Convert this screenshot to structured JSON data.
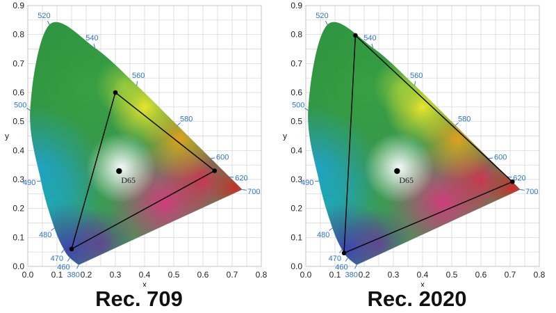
{
  "style": {
    "wavelength_color": "#2e72c8",
    "gamut_color": "#000000",
    "grid_color": "#d2d2d2"
  },
  "chart_data": [
    {
      "type": "scatter",
      "title": "Rec. 709",
      "xlabel": "x",
      "ylabel": "y",
      "xlim": [
        0,
        0.8
      ],
      "ylim": [
        0,
        0.9
      ],
      "grid": true,
      "x_ticks": [
        "0.0",
        "0.1",
        "0.2",
        "0.3",
        "0.4",
        "0.5",
        "0.6",
        "0.7",
        "0.8"
      ],
      "y_ticks": [
        "0.0",
        "0.1",
        "0.2",
        "0.3",
        "0.4",
        "0.5",
        "0.6",
        "0.7",
        "0.8",
        "0.9"
      ],
      "spectral_locus": [
        {
          "nm": "380",
          "x": 0.1741,
          "y": 0.005
        },
        {
          "nm": "460",
          "x": 0.144,
          "y": 0.0297
        },
        {
          "nm": "470",
          "x": 0.1241,
          "y": 0.0578
        },
        {
          "nm": "480",
          "x": 0.0913,
          "y": 0.1327
        },
        {
          "nm": "490",
          "x": 0.0454,
          "y": 0.295
        },
        {
          "nm": "500",
          "x": 0.0082,
          "y": 0.5384
        },
        {
          "nm": "520",
          "x": 0.0743,
          "y": 0.8338
        },
        {
          "nm": "540",
          "x": 0.2296,
          "y": 0.7543
        },
        {
          "nm": "560",
          "x": 0.3731,
          "y": 0.6245
        },
        {
          "nm": "580",
          "x": 0.5125,
          "y": 0.4866
        },
        {
          "nm": "600",
          "x": 0.627,
          "y": 0.3725
        },
        {
          "nm": "620",
          "x": 0.6915,
          "y": 0.3083
        },
        {
          "nm": "700",
          "x": 0.7347,
          "y": 0.2653
        }
      ],
      "gamut": [
        {
          "x": 0.64,
          "y": 0.33
        },
        {
          "x": 0.3,
          "y": 0.6
        },
        {
          "x": 0.15,
          "y": 0.06
        }
      ],
      "white_point": {
        "label": "D65",
        "x": 0.3127,
        "y": 0.329
      }
    },
    {
      "type": "scatter",
      "title": "Rec. 2020",
      "xlabel": "x",
      "ylabel": "y",
      "xlim": [
        0,
        0.8
      ],
      "ylim": [
        0,
        0.9
      ],
      "grid": true,
      "x_ticks": [
        "0.0",
        "0.1",
        "0.2",
        "0.3",
        "0.4",
        "0.5",
        "0.6",
        "0.7",
        "0.8"
      ],
      "y_ticks": [
        "0.0",
        "0.1",
        "0.2",
        "0.3",
        "0.4",
        "0.5",
        "0.6",
        "0.7",
        "0.8",
        "0.9"
      ],
      "spectral_locus": [
        {
          "nm": "380",
          "x": 0.1741,
          "y": 0.005
        },
        {
          "nm": "460",
          "x": 0.144,
          "y": 0.0297
        },
        {
          "nm": "470",
          "x": 0.1241,
          "y": 0.0578
        },
        {
          "nm": "480",
          "x": 0.0913,
          "y": 0.1327
        },
        {
          "nm": "490",
          "x": 0.0454,
          "y": 0.295
        },
        {
          "nm": "500",
          "x": 0.0082,
          "y": 0.5384
        },
        {
          "nm": "520",
          "x": 0.0743,
          "y": 0.8338
        },
        {
          "nm": "540",
          "x": 0.2296,
          "y": 0.7543
        },
        {
          "nm": "560",
          "x": 0.3731,
          "y": 0.6245
        },
        {
          "nm": "580",
          "x": 0.5125,
          "y": 0.4866
        },
        {
          "nm": "600",
          "x": 0.627,
          "y": 0.3725
        },
        {
          "nm": "620",
          "x": 0.6915,
          "y": 0.3083
        },
        {
          "nm": "700",
          "x": 0.7347,
          "y": 0.2653
        }
      ],
      "gamut": [
        {
          "x": 0.708,
          "y": 0.292
        },
        {
          "x": 0.17,
          "y": 0.797
        },
        {
          "x": 0.131,
          "y": 0.046
        }
      ],
      "white_point": {
        "label": "D65",
        "x": 0.3127,
        "y": 0.329
      }
    }
  ]
}
